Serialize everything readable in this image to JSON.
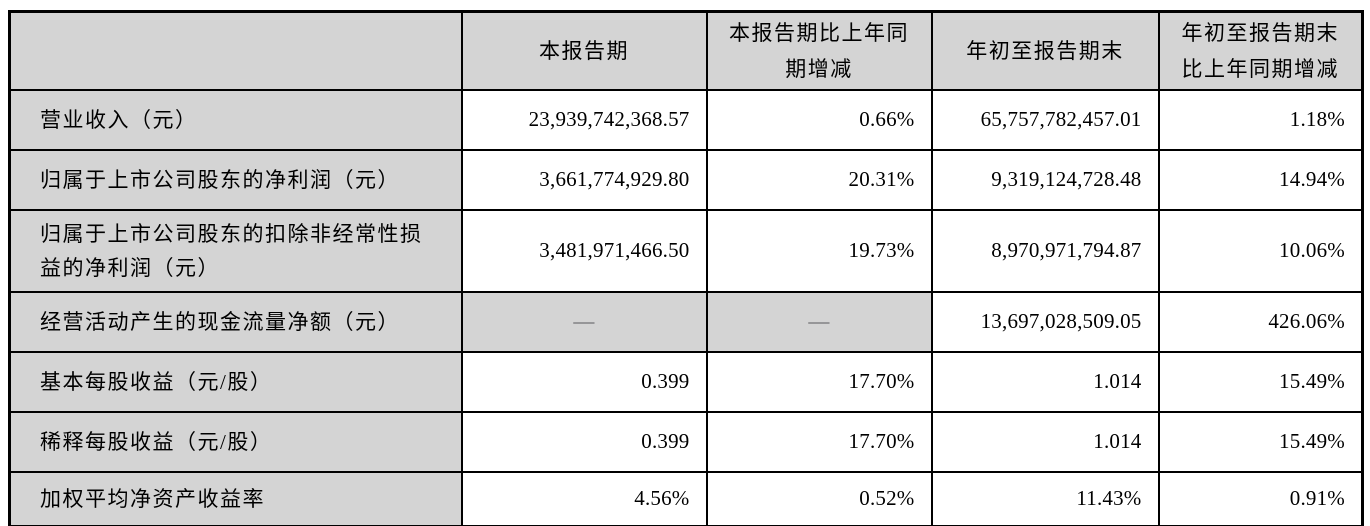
{
  "table": {
    "columns": [
      {
        "label": ""
      },
      {
        "label": "本报告期"
      },
      {
        "label": "本报告期比上年同期增减"
      },
      {
        "label": "年初至报告期末"
      },
      {
        "label": "年初至报告期末比上年同期增减"
      }
    ],
    "rows": [
      {
        "label": "营业收入（元）",
        "values": [
          "23,939,742,368.57",
          "0.66%",
          "65,757,782,457.01",
          "1.18%"
        ]
      },
      {
        "label": "归属于上市公司股东的净利润（元）",
        "values": [
          "3,661,774,929.80",
          "20.31%",
          "9,319,124,728.48",
          "14.94%"
        ]
      },
      {
        "label": "归属于上市公司股东的扣除非经常性损益的净利润（元）",
        "values": [
          "3,481,971,466.50",
          "19.73%",
          "8,970,971,794.87",
          "10.06%"
        ]
      },
      {
        "label": "经营活动产生的现金流量净额（元）",
        "values": [
          "—",
          "—",
          "13,697,028,509.05",
          "426.06%"
        ],
        "shaded_value_indices": [
          0,
          1
        ]
      },
      {
        "label": "基本每股收益（元/股）",
        "values": [
          "0.399",
          "17.70%",
          "1.014",
          "15.49%"
        ]
      },
      {
        "label": "稀释每股收益（元/股）",
        "values": [
          "0.399",
          "17.70%",
          "1.014",
          "15.49%"
        ]
      },
      {
        "label": "加权平均净资产收益率",
        "values": [
          "4.56%",
          "0.52%",
          "11.43%",
          "0.91%"
        ]
      }
    ],
    "colors": {
      "shaded_bg": "#d4d4d4",
      "border": "#000000",
      "dash_color": "#58595b",
      "text": "#000000"
    }
  }
}
